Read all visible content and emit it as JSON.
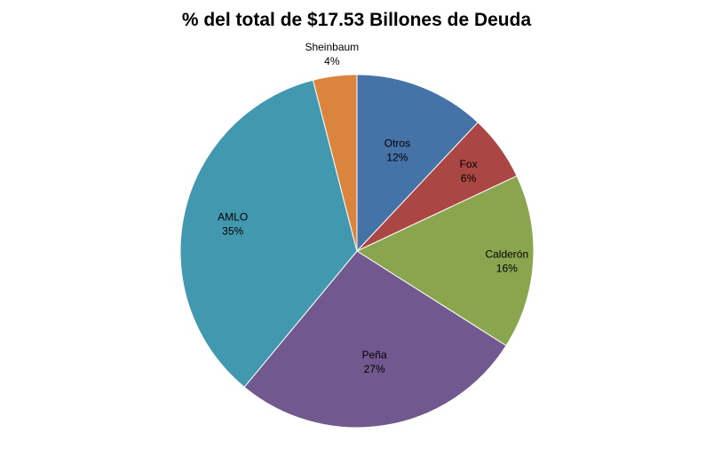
{
  "chart_data": {
    "type": "pie",
    "title": "% del total de $17.53 Billones de Deuda",
    "slices": [
      {
        "name": "Otros",
        "value": 12,
        "label": "12%",
        "color": "#4572A7"
      },
      {
        "name": "Fox",
        "value": 6,
        "label": "6%",
        "color": "#AA4643"
      },
      {
        "name": "Calderón",
        "value": 16,
        "label": "16%",
        "color": "#89A54E"
      },
      {
        "name": "Peña",
        "value": 27,
        "label": "27%",
        "color": "#71588F"
      },
      {
        "name": "AMLO",
        "value": 35,
        "label": "35%",
        "color": "#4198AF"
      },
      {
        "name": "Sheinbaum",
        "value": 4,
        "label": "4%",
        "color": "#DB843D"
      }
    ],
    "legend": "none"
  }
}
